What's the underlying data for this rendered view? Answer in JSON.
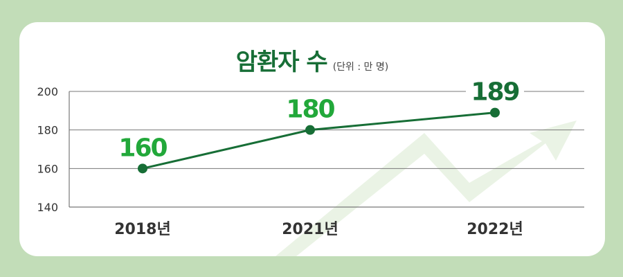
{
  "colors": {
    "background": "#c2ddb8",
    "card": "#ffffff",
    "title": "#176e36",
    "line": "#176e36",
    "label_bright": "#22a83a",
    "label_dark": "#176e36",
    "arrow": "#eaf3e5",
    "grid": "#777777"
  },
  "decor": {
    "arrow_icon": "trend-up-arrow-icon"
  },
  "chart_data": {
    "type": "line",
    "title": "암환자 수",
    "subtitle": "(단위 : 만 명)",
    "categories": [
      "2018년",
      "2021년",
      "2022년"
    ],
    "values": [
      160,
      180,
      189
    ],
    "data_labels": [
      "160",
      "180",
      "189"
    ],
    "ylim": [
      140,
      200
    ],
    "yticks": [
      "140",
      "160",
      "180",
      "200"
    ],
    "grid": true,
    "legend": "none"
  }
}
